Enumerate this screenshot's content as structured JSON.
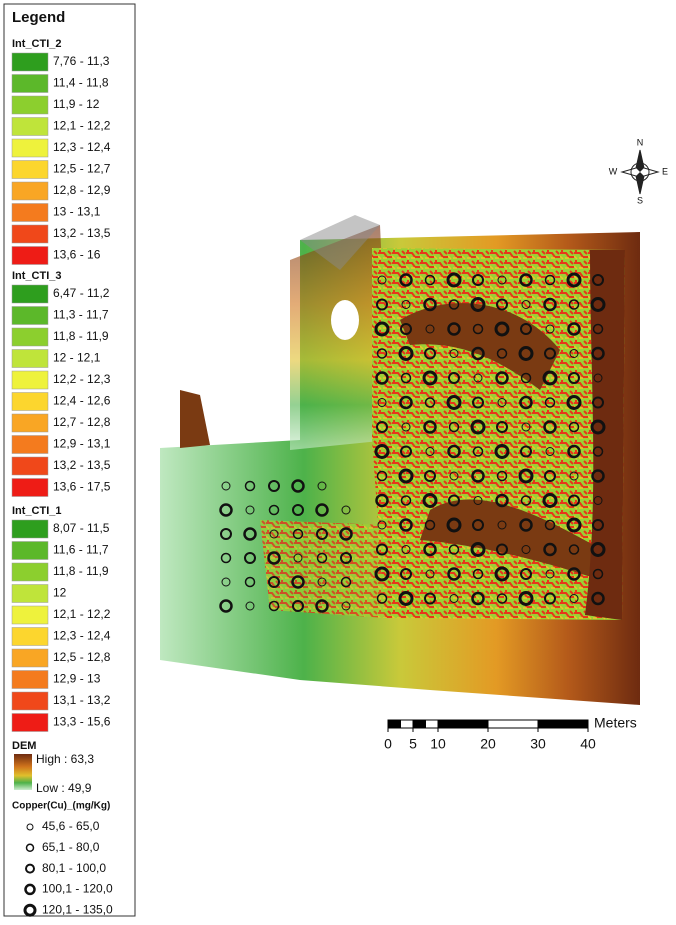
{
  "legend": {
    "title": "Legend",
    "groups": [
      {
        "title": "Int_CTI_2",
        "items": [
          {
            "label": "7,76 - 11,3",
            "color": "#2e9e1e"
          },
          {
            "label": "11,4 - 11,8",
            "color": "#5cb82a"
          },
          {
            "label": "11,9 - 12",
            "color": "#8ccf2e"
          },
          {
            "label": "12,1 - 12,2",
            "color": "#bfe43a"
          },
          {
            "label": "12,3 - 12,4",
            "color": "#eef23c"
          },
          {
            "label": "12,5 - 12,7",
            "color": "#fcd62e"
          },
          {
            "label": "12,8 - 12,9",
            "color": "#f9a624"
          },
          {
            "label": "13 - 13,1",
            "color": "#f47b1e"
          },
          {
            "label": "13,2 - 13,5",
            "color": "#f0481a"
          },
          {
            "label": "13,6 - 16",
            "color": "#ee1c16"
          }
        ]
      },
      {
        "title": "Int_CTI_3",
        "items": [
          {
            "label": "6,47 - 11,2",
            "color": "#2e9e1e"
          },
          {
            "label": "11,3 - 11,7",
            "color": "#5cb82a"
          },
          {
            "label": "11,8 - 11,9",
            "color": "#8ccf2e"
          },
          {
            "label": "12 - 12,1",
            "color": "#bfe43a"
          },
          {
            "label": "12,2 - 12,3",
            "color": "#eef23c"
          },
          {
            "label": "12,4 - 12,6",
            "color": "#fcd62e"
          },
          {
            "label": "12,7 - 12,8",
            "color": "#f9a624"
          },
          {
            "label": "12,9 - 13,1",
            "color": "#f47b1e"
          },
          {
            "label": "13,2 - 13,5",
            "color": "#f0481a"
          },
          {
            "label": "13,6 - 17,5",
            "color": "#ee1c16"
          }
        ]
      },
      {
        "title": "Int_CTI_1",
        "items": [
          {
            "label": "8,07 - 11,5",
            "color": "#2e9e1e"
          },
          {
            "label": "11,6 - 11,7",
            "color": "#5cb82a"
          },
          {
            "label": "11,8 - 11,9",
            "color": "#8ccf2e"
          },
          {
            "label": "12",
            "color": "#bfe43a"
          },
          {
            "label": "12,1 - 12,2",
            "color": "#eef23c"
          },
          {
            "label": "12,3 - 12,4",
            "color": "#fcd62e"
          },
          {
            "label": "12,5 - 12,8",
            "color": "#f9a624"
          },
          {
            "label": "12,9 - 13",
            "color": "#f47b1e"
          },
          {
            "label": "13,1 - 13,2",
            "color": "#f0481a"
          },
          {
            "label": "13,3 - 15,6",
            "color": "#ee1c16"
          }
        ]
      }
    ],
    "dem": {
      "title": "DEM",
      "high": "High : 63,3",
      "low": "Low : 49,9"
    },
    "copper": {
      "title": "Copper(Cu)_(mg/Kg)",
      "items": [
        "45,6 - 65,0",
        "65,1 - 80,0",
        "80,1 - 100,0",
        "100,1 - 120,0",
        "120,1 - 135,0"
      ]
    }
  },
  "scalebar": {
    "unit": "Meters",
    "ticks": [
      0,
      5,
      10,
      20,
      30,
      40
    ]
  },
  "compass": {
    "n": "N",
    "e": "E",
    "s": "S",
    "w": "W"
  }
}
